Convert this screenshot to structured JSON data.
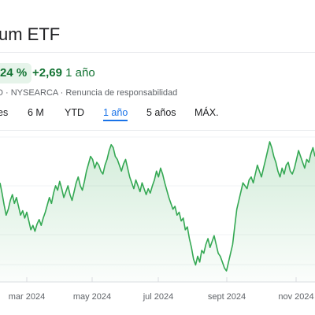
{
  "header": {
    "title": "um ETF"
  },
  "quote": {
    "percent_change": "24 %",
    "abs_change": "+2,69",
    "period": "1 año",
    "meta": "D · NYSEARCA · Renuncia de responsabilidad"
  },
  "tabs": [
    {
      "label": "es",
      "active": false
    },
    {
      "label": "6 M",
      "active": false
    },
    {
      "label": "YTD",
      "active": false
    },
    {
      "label": "1 año",
      "active": true
    },
    {
      "label": "5 años",
      "active": false
    },
    {
      "label": "MÁX.",
      "active": false
    }
  ],
  "colors": {
    "positive": "#137333",
    "line": "#34a853",
    "accent": "#1a73e8"
  },
  "chart_data": {
    "type": "area",
    "x_ticks": [
      "mar 2024",
      "may 2024",
      "jul 2024",
      "sept 2024",
      "nov 2024"
    ],
    "grid": true,
    "series": [
      {
        "values": [
          62,
          55,
          47,
          40,
          44,
          50,
          54,
          48,
          52,
          46,
          40,
          43,
          38,
          42,
          36,
          30,
          33,
          29,
          34,
          37,
          33,
          38,
          42,
          47,
          52,
          48,
          55,
          60,
          57,
          63,
          58,
          52,
          56,
          60,
          54,
          50,
          56,
          62,
          66,
          60,
          57,
          63,
          70,
          75,
          80,
          78,
          72,
          76,
          74,
          70,
          68,
          74,
          78,
          84,
          88,
          86,
          80,
          78,
          74,
          70,
          75,
          78,
          72,
          66,
          62,
          58,
          64,
          60,
          56,
          62,
          58,
          54,
          58,
          55,
          60,
          64,
          70,
          66,
          72,
          68,
          62,
          57,
          52,
          48,
          44,
          46,
          40,
          42,
          36,
          38,
          30,
          32,
          24,
          18,
          10,
          6,
          12,
          8,
          16,
          14,
          20,
          24,
          18,
          22,
          26,
          20,
          14,
          12,
          8,
          4,
          2,
          8,
          14,
          20,
          32,
          44,
          50,
          56,
          62,
          60,
          58,
          64,
          66,
          62,
          68,
          74,
          70,
          66,
          72,
          78,
          84,
          90,
          86,
          80,
          76,
          70,
          66,
          72,
          68,
          74,
          76,
          70,
          68,
          72,
          78,
          84,
          80,
          76,
          72,
          78,
          76,
          82,
          86,
          80
        ]
      }
    ]
  }
}
